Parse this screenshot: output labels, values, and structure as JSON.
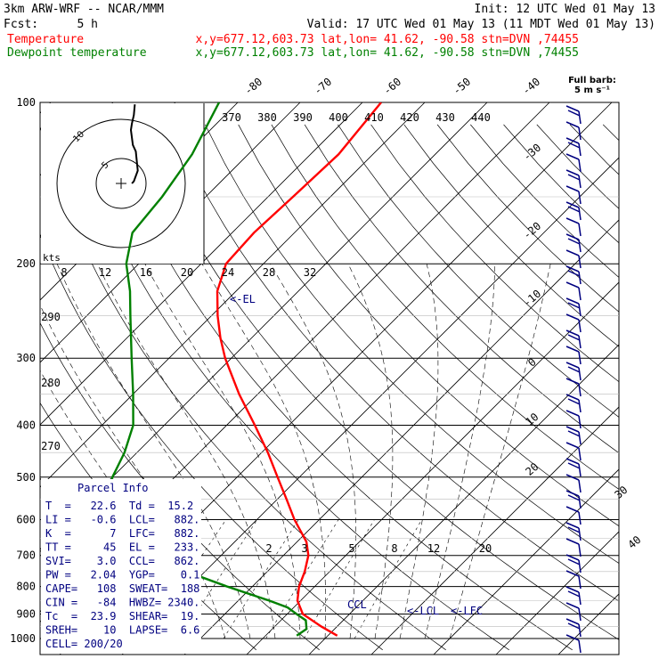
{
  "header": {
    "model": "3km ARW-WRF -- NCAR/MMM",
    "init": "Init: 12 UTC Wed 01 May 13",
    "fcst_label": "Fcst:",
    "fcst_value": "5 h",
    "valid": "Valid: 17 UTC Wed 01 May 13 (11 MDT Wed 01 May 13)",
    "temp_label": "Temperature",
    "temp_info": "x,y=677.12,603.73   lat,lon= 41.62, -90.58  stn=DVN ,74455",
    "dew_label": "Dewpoint temperature",
    "dew_info": "x,y=677.12,603.73   lat,lon= 41.62, -90.58  stn=DVN ,74455"
  },
  "colors": {
    "temperature": "#ff0000",
    "dewpoint": "#008000",
    "annotation": "#000080",
    "grid": "#000000"
  },
  "barb_legend": {
    "line1": "Full barb:",
    "line2": "5 m s⁻¹"
  },
  "hodograph": {
    "kts_label": "kts",
    "speed_ticks": [
      "8",
      "12",
      "16",
      "20",
      "24",
      "28",
      "32"
    ],
    "ring_labels": [
      "5",
      "10"
    ],
    "hodo_points_kts": [
      [
        28,
        74
      ],
      [
        26,
        64
      ],
      [
        22,
        56
      ],
      [
        20,
        50
      ],
      [
        24,
        36
      ],
      [
        30,
        30
      ],
      [
        34,
        12
      ],
      [
        26,
        2
      ],
      [
        22,
        0
      ]
    ]
  },
  "theta_labels": [
    "370",
    "380",
    "390",
    "400",
    "410",
    "420",
    "430",
    "440"
  ],
  "mixing_ratio_labels": [
    "2",
    "3",
    "5",
    "8",
    "12",
    "20"
  ],
  "annotations": {
    "el": "<-EL",
    "lcl": "<-LCL",
    "lfc": "<-LFC",
    "ccl": "CCL"
  },
  "parcel": {
    "title": "Parcel Info",
    "rows": [
      "T  =   22.6  Td =  15.2",
      "LI =   -0.6  LCL=   882.",
      "K  =      7  LFC=   882.",
      "TT =     45  EL =   233.",
      "SVI=    3.0  CCL=   862.",
      "PW =   2.04  YGP=    0.1",
      "CAPE=   108  SWEAT=  188",
      "CIN =   -84  HWBZ= 2340.",
      "Tc  =  23.9  SHEAR=  19.",
      "SREH=    10  LAPSE=  6.6",
      "CELL= 200/20"
    ]
  },
  "chart_data": {
    "type": "skew-t log-p sounding",
    "pressure_axis_hPa": [
      "100",
      "200",
      "300",
      "400",
      "500",
      "600",
      "700",
      "800",
      "900",
      "1000"
    ],
    "isotherm_labels_C": [
      "-80",
      "-70",
      "-60",
      "-50",
      "-40",
      "-30",
      "-20",
      "-10",
      "0",
      "10",
      "20",
      "30",
      "40"
    ],
    "dry_adiabat_labels": [
      "290",
      "280",
      "270"
    ],
    "series": [
      {
        "name": "Temperature",
        "points": [
          {
            "p": 988,
            "t": 21.5
          },
          {
            "p": 950,
            "t": 17.5
          },
          {
            "p": 900,
            "t": 12.5
          },
          {
            "p": 850,
            "t": 9.5
          },
          {
            "p": 800,
            "t": 7.5
          },
          {
            "p": 750,
            "t": 6.0
          },
          {
            "p": 700,
            "t": 4.0
          },
          {
            "p": 660,
            "t": 1.5
          },
          {
            "p": 600,
            "t": -4.0
          },
          {
            "p": 550,
            "t": -8.5
          },
          {
            "p": 500,
            "t": -13.5
          },
          {
            "p": 450,
            "t": -19.0
          },
          {
            "p": 400,
            "t": -25.5
          },
          {
            "p": 350,
            "t": -33.0
          },
          {
            "p": 300,
            "t": -41.0
          },
          {
            "p": 275,
            "t": -45.0
          },
          {
            "p": 250,
            "t": -49.0
          },
          {
            "p": 225,
            "t": -53.0
          },
          {
            "p": 200,
            "t": -56.0
          },
          {
            "p": 175,
            "t": -56.5
          },
          {
            "p": 150,
            "t": -56.0
          },
          {
            "p": 125,
            "t": -55.5
          },
          {
            "p": 100,
            "t": -57.0
          }
        ]
      },
      {
        "name": "Dewpoint temperature",
        "points": [
          {
            "p": 988,
            "t": 15.0
          },
          {
            "p": 960,
            "t": 15.5
          },
          {
            "p": 925,
            "t": 14.0
          },
          {
            "p": 900,
            "t": 11.5
          },
          {
            "p": 875,
            "t": 9.0
          },
          {
            "p": 850,
            "t": 5.0
          },
          {
            "p": 800,
            "t": -4.0
          },
          {
            "p": 750,
            "t": -13.0
          },
          {
            "p": 700,
            "t": -18.0
          },
          {
            "p": 650,
            "t": -22.0
          },
          {
            "p": 600,
            "t": -28.0
          },
          {
            "p": 550,
            "t": -37.0
          },
          {
            "p": 500,
            "t": -40.0
          },
          {
            "p": 450,
            "t": -42.0
          },
          {
            "p": 400,
            "t": -45.0
          },
          {
            "p": 350,
            "t": -50.0
          },
          {
            "p": 300,
            "t": -56.0
          },
          {
            "p": 250,
            "t": -63.0
          },
          {
            "p": 225,
            "t": -67.0
          },
          {
            "p": 200,
            "t": -72.0
          },
          {
            "p": 175,
            "t": -76.0
          },
          {
            "p": 150,
            "t": -77.0
          },
          {
            "p": 125,
            "t": -79.0
          },
          {
            "p": 100,
            "t": -83.0
          }
        ]
      }
    ]
  }
}
